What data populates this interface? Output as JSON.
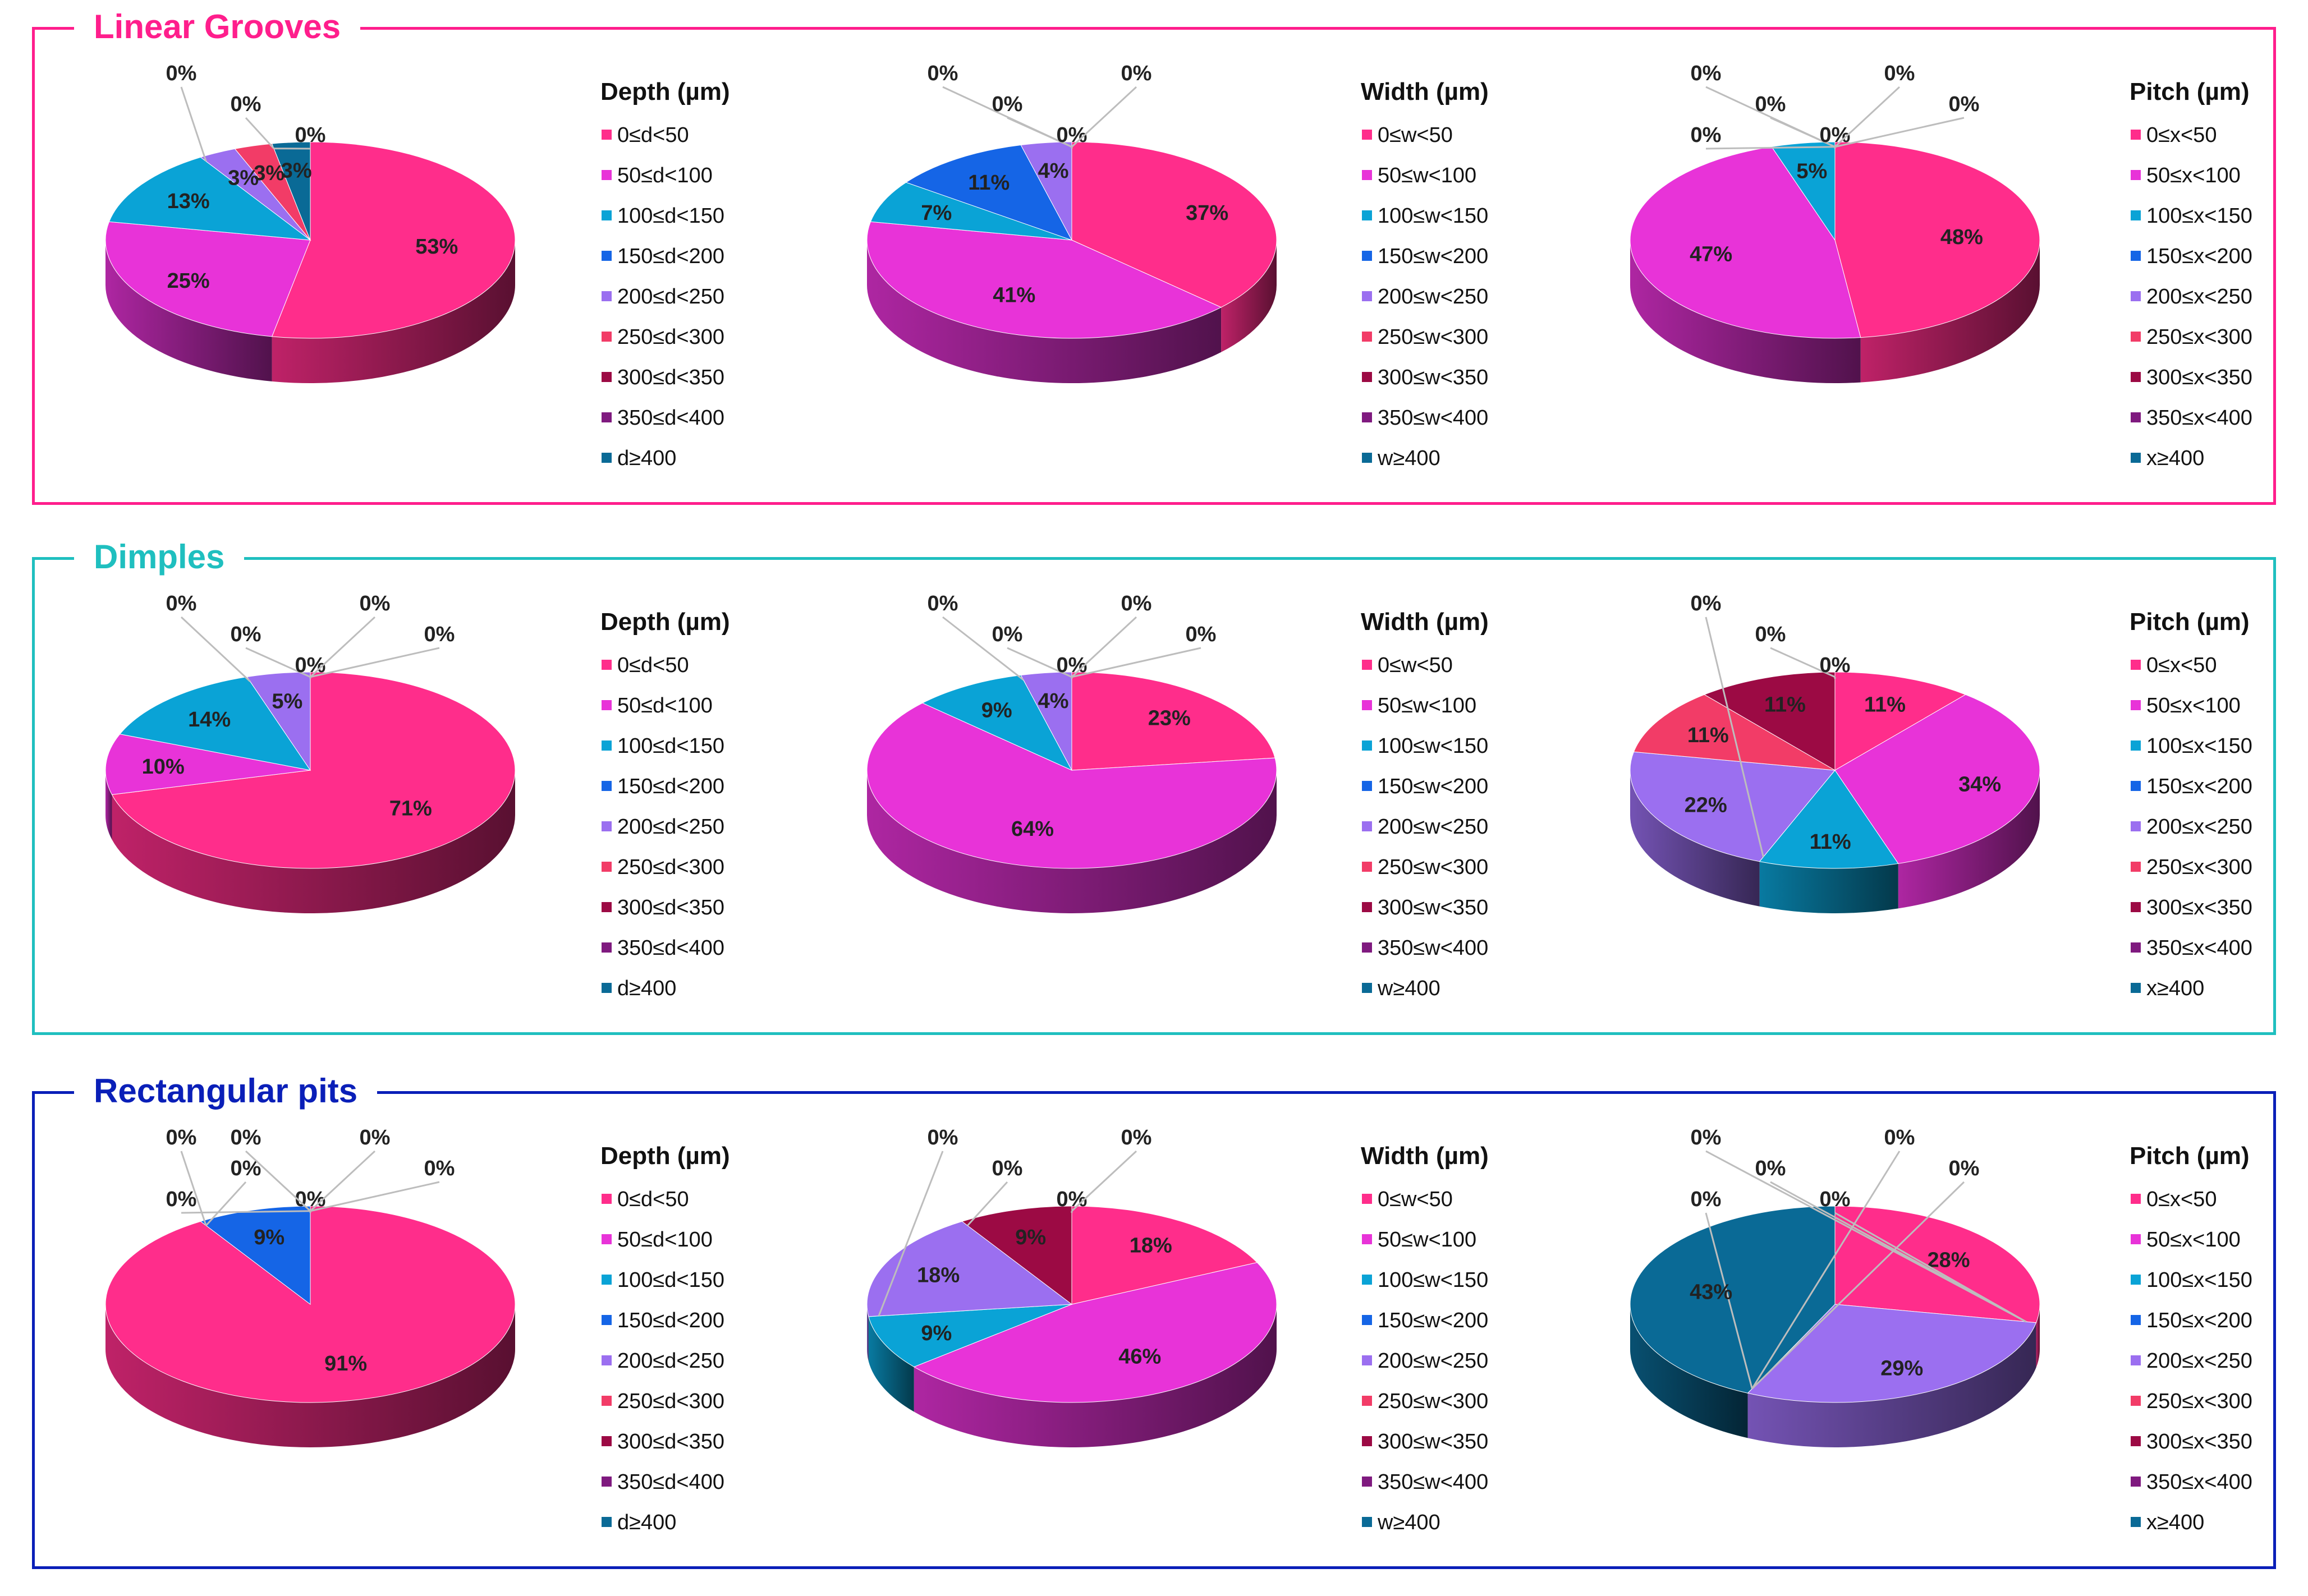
{
  "colors": [
    "#ff2d8b",
    "#e833d8",
    "#0aa3d6",
    "#1565e6",
    "#9b6ff0",
    "#f23c67",
    "#9c0a44",
    "#7f1a7f",
    "#0a6a96"
  ],
  "chart_data": [
    {
      "name": "Linear Grooves",
      "color": "#ff1e8c",
      "charts": [
        {
          "type": "pie",
          "title": "Depth (µm)",
          "categories": [
            "0≤d<50",
            "50≤d<100",
            "100≤d<150",
            "150≤d<200",
            "200≤d<250",
            "250≤d<300",
            "300≤d<350",
            "350≤d<400",
            "d≥400"
          ],
          "values": [
            53,
            25,
            13,
            0,
            3,
            3,
            0,
            0,
            3
          ],
          "labels": [
            "53%",
            "25%",
            "13%",
            "0%",
            "3%",
            "3%",
            "0%",
            "0%",
            "3%"
          ]
        },
        {
          "type": "pie",
          "title": "Width (µm)",
          "categories": [
            "0≤w<50",
            "50≤w<100",
            "100≤w<150",
            "150≤w<200",
            "200≤w<250",
            "250≤w<300",
            "300≤w<350",
            "350≤w<400",
            "w≥400"
          ],
          "values": [
            37,
            41,
            7,
            11,
            4,
            0,
            0,
            0,
            0
          ],
          "labels": [
            "37%",
            "41%",
            "7%",
            "11%",
            "4%",
            "0%",
            "0%",
            "0%",
            "0%"
          ]
        },
        {
          "type": "pie",
          "title": "Pitch (µm)",
          "categories": [
            "0≤x<50",
            "50≤x<100",
            "100≤x<150",
            "150≤x<200",
            "200≤x<250",
            "250≤x<300",
            "300≤x<350",
            "350≤x<400",
            "x≥400"
          ],
          "values": [
            48,
            47,
            5,
            0,
            0,
            0,
            0,
            0,
            0
          ],
          "labels": [
            "48%",
            "47%",
            "5%",
            "0%",
            "0%",
            "0%",
            "0%",
            "0%",
            "0%"
          ]
        }
      ]
    },
    {
      "name": "Dimples",
      "color": "#1fbfbf",
      "charts": [
        {
          "type": "pie",
          "title": "Depth (µm)",
          "categories": [
            "0≤d<50",
            "50≤d<100",
            "100≤d<150",
            "150≤d<200",
            "200≤d<250",
            "250≤d<300",
            "300≤d<350",
            "350≤d<400",
            "d≥400"
          ],
          "values": [
            71,
            10,
            14,
            0,
            5,
            0,
            0,
            0,
            0
          ],
          "labels": [
            "71%",
            "10%",
            "14%",
            "0%",
            "5%",
            "0%",
            "0%",
            "0%",
            "0%"
          ]
        },
        {
          "type": "pie",
          "title": "Width (µm)",
          "categories": [
            "0≤w<50",
            "50≤w<100",
            "100≤w<150",
            "150≤w<200",
            "200≤w<250",
            "250≤w<300",
            "300≤w<350",
            "350≤w<400",
            "w≥400"
          ],
          "values": [
            23,
            64,
            9,
            0,
            4,
            0,
            0,
            0,
            0
          ],
          "labels": [
            "23%",
            "64%",
            "9%",
            "0%",
            "4%",
            "0%",
            "0%",
            "0%",
            "0%"
          ]
        },
        {
          "type": "pie",
          "title": "Pitch (µm)",
          "categories": [
            "0≤x<50",
            "50≤x<100",
            "100≤x<150",
            "150≤x<200",
            "200≤x<250",
            "250≤x<300",
            "300≤x<350",
            "350≤x<400",
            "x≥400"
          ],
          "values": [
            11,
            34,
            11,
            0,
            22,
            11,
            11,
            0,
            0
          ],
          "labels": [
            "11%",
            "34%",
            "11%",
            "0%",
            "22%",
            "11%",
            "11%",
            "0%",
            "0%"
          ]
        }
      ]
    },
    {
      "name": "Rectangular pits",
      "color": "#0a1fb8",
      "charts": [
        {
          "type": "pie",
          "title": "Depth (µm)",
          "categories": [
            "0≤d<50",
            "50≤d<100",
            "100≤d<150",
            "150≤d<200",
            "200≤d<250",
            "250≤d<300",
            "300≤d<350",
            "350≤d<400",
            "d≥400"
          ],
          "values": [
            91,
            0,
            0,
            9,
            0,
            0,
            0,
            0,
            0
          ],
          "labels": [
            "91%",
            "0%",
            "0%",
            "9%",
            "0%",
            "0%",
            "0%",
            "0%",
            "0%"
          ]
        },
        {
          "type": "pie",
          "title": "Width (µm)",
          "categories": [
            "0≤w<50",
            "50≤w<100",
            "100≤w<150",
            "150≤w<200",
            "200≤w<250",
            "250≤w<300",
            "300≤w<350",
            "350≤w<400",
            "w≥400"
          ],
          "values": [
            18,
            46,
            9,
            0,
            18,
            0,
            9,
            0,
            0
          ],
          "labels": [
            "18%",
            "46%",
            "9%",
            "0%",
            "18%",
            "0%",
            "9%",
            "0%",
            "0%"
          ]
        },
        {
          "type": "pie",
          "title": "Pitch (µm)",
          "categories": [
            "0≤x<50",
            "50≤x<100",
            "100≤x<150",
            "150≤x<200",
            "200≤x<250",
            "250≤x<300",
            "300≤x<350",
            "350≤x<400",
            "x≥400"
          ],
          "values": [
            28,
            0,
            0,
            0,
            29,
            0,
            0,
            0,
            43
          ],
          "labels": [
            "28%",
            "0%",
            "0%",
            "0%",
            "29%",
            "0%",
            "0%",
            "0%",
            "43%"
          ]
        }
      ]
    }
  ]
}
